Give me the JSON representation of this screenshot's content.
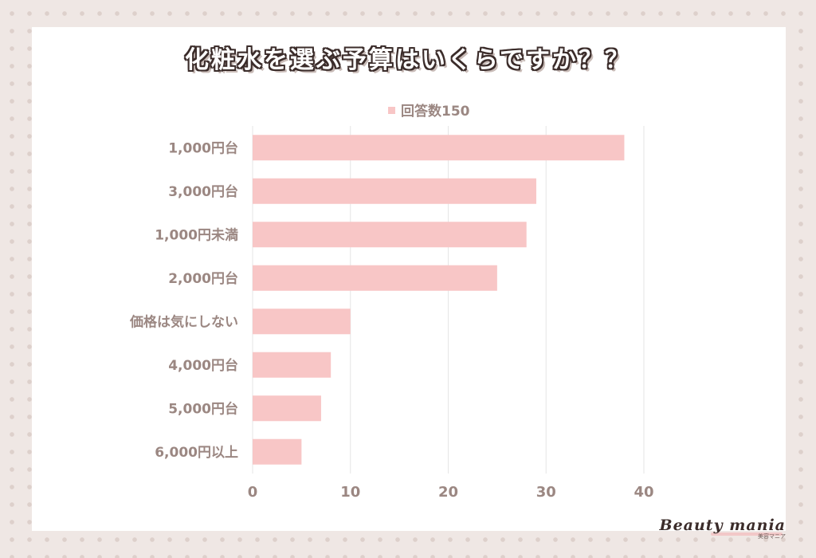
{
  "chart_data": {
    "type": "bar",
    "orientation": "horizontal",
    "title": "化粧水を選ぶ予算はいくらですか？？",
    "legend": "回答数150",
    "legend_position": "top",
    "categories": [
      "1,000円台",
      "3,000円台",
      "1,000円未満",
      "2,000円台",
      "価格は気にしない",
      "4,000円台",
      "5,000円台",
      "6,000円以上"
    ],
    "values": [
      38,
      29,
      28,
      25,
      10,
      8,
      7,
      5
    ],
    "xlim": [
      0,
      40
    ],
    "xticks": [
      "0",
      "10",
      "20",
      "30",
      "40"
    ],
    "grid": true,
    "bar_color": "#f8c6c6"
  },
  "branding": {
    "logo_text": "Beauty mania",
    "logo_sub": "美容マニア"
  }
}
